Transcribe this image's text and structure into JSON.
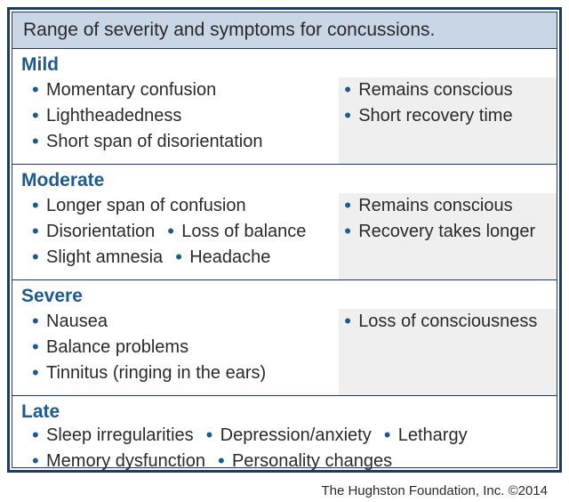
{
  "colors": {
    "border": "#1e3a66",
    "header_bg": "#c9d6e6",
    "title": "#1e5a8e",
    "text": "#2a2a2a",
    "shade_bg": "#efefef",
    "white": "#ffffff"
  },
  "typography": {
    "title_fontsize": 21,
    "body_fontsize": 20,
    "footer_fontsize": 15
  },
  "header": "Range of severity and symptoms for concussions.",
  "sections": [
    {
      "title": "Mild",
      "left_items": [
        "Momentary confusion",
        "Lightheadedness",
        "Short span of disorientation"
      ],
      "right_items": [
        "Remains conscious",
        "Short recovery time"
      ],
      "left_stack": true,
      "has_right": true
    },
    {
      "title": "Moderate",
      "left_items": [
        "Longer span of confusion",
        "Disorientation",
        "Loss of balance",
        "Slight amnesia",
        "Headache"
      ],
      "right_items": [
        "Remains conscious",
        "Recovery takes longer"
      ],
      "left_stack": false,
      "has_right": true
    },
    {
      "title": "Severe",
      "left_items": [
        "Nausea",
        "Balance problems",
        "Tinnitus (ringing in the ears)"
      ],
      "right_items": [
        "Loss of consciousness"
      ],
      "left_stack": false,
      "has_right": true
    },
    {
      "title": "Late",
      "left_items": [
        "Sleep irregularities",
        "Depression/anxiety",
        "Lethargy",
        "Memory dysfunction",
        "Personality changes"
      ],
      "right_items": [],
      "left_stack": false,
      "has_right": false
    }
  ],
  "footer": "The Hughston Foundation, Inc. ©2014"
}
